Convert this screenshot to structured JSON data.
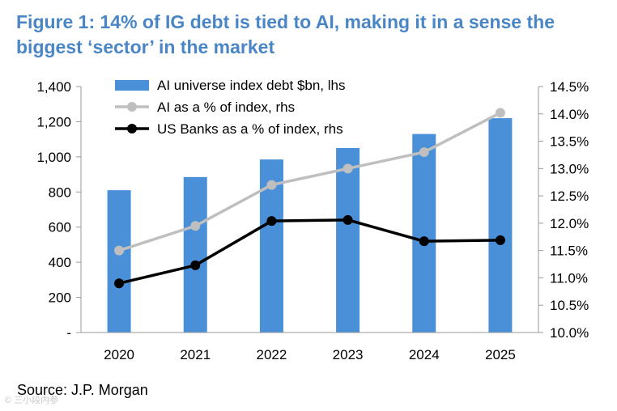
{
  "title": "Figure 1: 14% of IG debt is tied to AI, making it in a sense the biggest ‘sector’ in the market",
  "source": "Source: J.P. Morgan",
  "watermark": "© 三小段内参",
  "chart_data": {
    "type": "bar",
    "categories": [
      "2020",
      "2021",
      "2022",
      "2023",
      "2024",
      "2025"
    ],
    "series": [
      {
        "name": "AI universe index debt $bn, lhs",
        "kind": "bar",
        "axis": "left",
        "color": "#4a90d9",
        "values": [
          810,
          885,
          985,
          1050,
          1130,
          1220
        ]
      },
      {
        "name": "AI as a % of index, rhs",
        "kind": "line",
        "axis": "right",
        "color": "#bfbfbf",
        "values": [
          11.5,
          11.95,
          12.7,
          13.0,
          13.3,
          14.02
        ]
      },
      {
        "name": "US Banks as a % of index, rhs",
        "kind": "line",
        "axis": "right",
        "color": "#000000",
        "values": [
          10.9,
          11.23,
          12.04,
          12.06,
          11.67,
          11.69
        ]
      }
    ],
    "left_axis": {
      "min": 0,
      "max": 1400,
      "step": 200,
      "tick_labels": [
        "-",
        "200",
        "400",
        "600",
        "800",
        "1,000",
        "1,200",
        "1,400"
      ]
    },
    "right_axis": {
      "min": 10.0,
      "max": 14.5,
      "step": 0.5,
      "tick_labels": [
        "10.0%",
        "10.5%",
        "11.0%",
        "11.5%",
        "12.0%",
        "12.5%",
        "13.0%",
        "13.5%",
        "14.0%",
        "14.5%"
      ]
    },
    "legend_position": "top-left",
    "grid": false
  }
}
